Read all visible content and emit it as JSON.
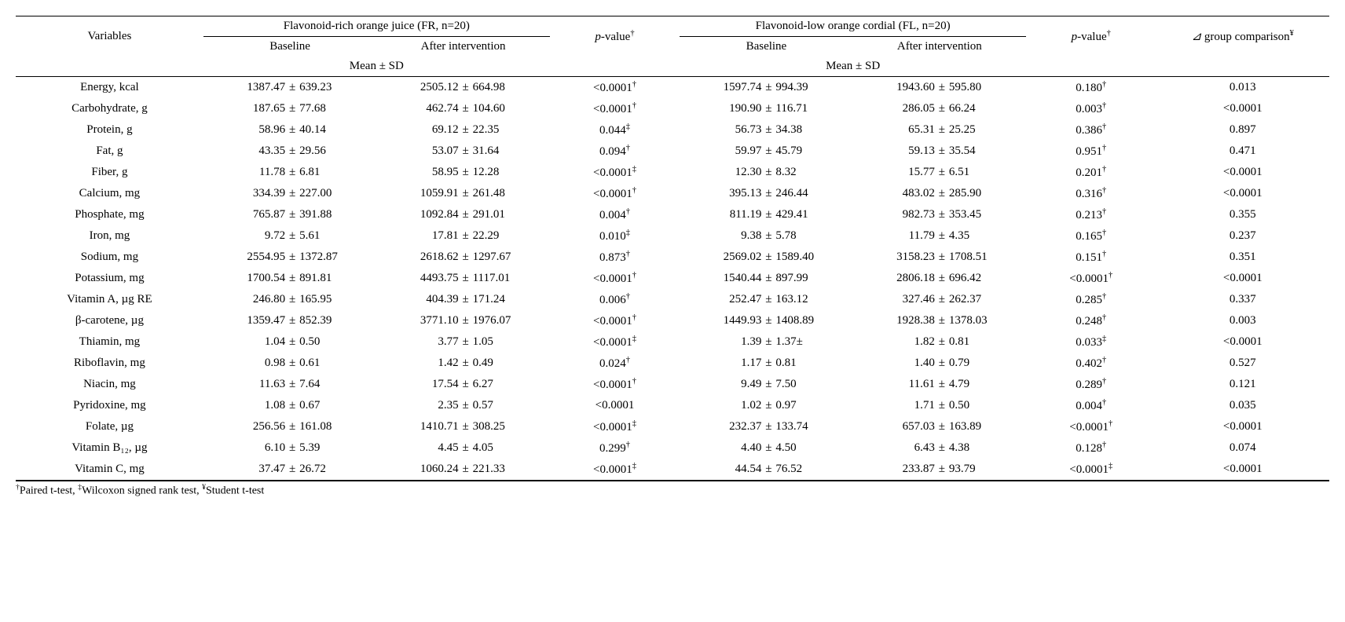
{
  "headers": {
    "variables": "Variables",
    "group_fr": "Flavonoid-rich orange juice (FR, n=20)",
    "group_fl": "Flavonoid-low orange cordial (FL, n=20)",
    "baseline": "Baseline",
    "after": "After intervention",
    "pvalue": "p",
    "pvalue_suffix": "-value",
    "pvalue_dagger": "†",
    "mean_sd": "Mean ± SD",
    "delta_prefix": "⊿",
    "delta_text": " group comparison",
    "delta_yen": "¥"
  },
  "rows": [
    {
      "var": "Energy, kcal",
      "fr_b_m": "1387.47",
      "fr_b_s": "639.23",
      "fr_a_m": "2505.12",
      "fr_a_s": "664.98",
      "fr_p": "<0.0001",
      "fr_p_sym": "†",
      "fl_b_m": "1597.74",
      "fl_b_s": "994.39",
      "fl_a_m": "1943.60",
      "fl_a_s": "595.80",
      "fl_p": "0.180",
      "fl_p_sym": "†",
      "delta": "0.013"
    },
    {
      "var": "Carbohydrate, g",
      "fr_b_m": "187.65",
      "fr_b_s": "77.68",
      "fr_a_m": "462.74",
      "fr_a_s": "104.60",
      "fr_p": "<0.0001",
      "fr_p_sym": "†",
      "fl_b_m": "190.90",
      "fl_b_s": "116.71",
      "fl_a_m": "286.05",
      "fl_a_s": "66.24",
      "fl_p": "0.003",
      "fl_p_sym": "†",
      "delta": "<0.0001"
    },
    {
      "var": "Protein, g",
      "fr_b_m": "58.96",
      "fr_b_s": "40.14",
      "fr_a_m": "69.12",
      "fr_a_s": "22.35",
      "fr_p": "0.044",
      "fr_p_sym": "‡",
      "fl_b_m": "56.73",
      "fl_b_s": "34.38",
      "fl_a_m": "65.31",
      "fl_a_s": "25.25",
      "fl_p": "0.386",
      "fl_p_sym": "†",
      "delta": "0.897"
    },
    {
      "var": "Fat, g",
      "fr_b_m": "43.35",
      "fr_b_s": "29.56",
      "fr_a_m": "53.07",
      "fr_a_s": "31.64",
      "fr_p": "0.094",
      "fr_p_sym": "†",
      "fl_b_m": "59.97",
      "fl_b_s": "45.79",
      "fl_a_m": "59.13",
      "fl_a_s": "35.54",
      "fl_p": "0.951",
      "fl_p_sym": "†",
      "delta": "0.471"
    },
    {
      "var": "Fiber, g",
      "fr_b_m": "11.78",
      "fr_b_s": "6.81",
      "fr_a_m": "58.95",
      "fr_a_s": "12.28",
      "fr_p": "<0.0001",
      "fr_p_sym": "‡",
      "fl_b_m": "12.30",
      "fl_b_s": "8.32",
      "fl_a_m": "15.77",
      "fl_a_s": "6.51",
      "fl_p": "0.201",
      "fl_p_sym": "†",
      "delta": "<0.0001"
    },
    {
      "var": "Calcium, mg",
      "fr_b_m": "334.39",
      "fr_b_s": "227.00",
      "fr_a_m": "1059.91",
      "fr_a_s": "261.48",
      "fr_p": "<0.0001",
      "fr_p_sym": "†",
      "fl_b_m": "395.13",
      "fl_b_s": "246.44",
      "fl_a_m": "483.02",
      "fl_a_s": "285.90",
      "fl_p": "0.316",
      "fl_p_sym": "†",
      "delta": "<0.0001"
    },
    {
      "var": "Phosphate, mg",
      "fr_b_m": "765.87",
      "fr_b_s": "391.88",
      "fr_a_m": "1092.84",
      "fr_a_s": "291.01",
      "fr_p": "0.004",
      "fr_p_sym": "†",
      "fl_b_m": "811.19",
      "fl_b_s": "429.41",
      "fl_a_m": "982.73",
      "fl_a_s": "353.45",
      "fl_p": "0.213",
      "fl_p_sym": "†",
      "delta": "0.355"
    },
    {
      "var": "Iron, mg",
      "fr_b_m": "9.72",
      "fr_b_s": "5.61",
      "fr_a_m": "17.81",
      "fr_a_s": "22.29",
      "fr_p": "0.010",
      "fr_p_sym": "‡",
      "fl_b_m": "9.38",
      "fl_b_s": "5.78",
      "fl_a_m": "11.79",
      "fl_a_s": "4.35",
      "fl_p": "0.165",
      "fl_p_sym": "†",
      "delta": "0.237"
    },
    {
      "var": "Sodium, mg",
      "fr_b_m": "2554.95",
      "fr_b_s": "1372.87",
      "fr_a_m": "2618.62",
      "fr_a_s": "1297.67",
      "fr_p": "0.873",
      "fr_p_sym": "†",
      "fl_b_m": "2569.02",
      "fl_b_s": "1589.40",
      "fl_a_m": "3158.23",
      "fl_a_s": "1708.51",
      "fl_p": "0.151",
      "fl_p_sym": "†",
      "delta": "0.351"
    },
    {
      "var": "Potassium, mg",
      "fr_b_m": "1700.54",
      "fr_b_s": "891.81",
      "fr_a_m": "4493.75",
      "fr_a_s": "1117.01",
      "fr_p": "<0.0001",
      "fr_p_sym": "†",
      "fl_b_m": "1540.44",
      "fl_b_s": "897.99",
      "fl_a_m": "2806.18",
      "fl_a_s": "696.42",
      "fl_p": "<0.0001",
      "fl_p_sym": "†",
      "delta": "<0.0001"
    },
    {
      "var": "Vitamin A, µg RE",
      "fr_b_m": "246.80",
      "fr_b_s": "165.95",
      "fr_a_m": "404.39",
      "fr_a_s": "171.24",
      "fr_p": "0.006",
      "fr_p_sym": "†",
      "fl_b_m": "252.47",
      "fl_b_s": "163.12",
      "fl_a_m": "327.46",
      "fl_a_s": "262.37",
      "fl_p": "0.285",
      "fl_p_sym": "†",
      "delta": "0.337"
    },
    {
      "var": "β-carotene, µg",
      "fr_b_m": "1359.47",
      "fr_b_s": "852.39",
      "fr_a_m": "3771.10",
      "fr_a_s": "1976.07",
      "fr_p": "<0.0001",
      "fr_p_sym": "†",
      "fl_b_m": "1449.93",
      "fl_b_s": "1408.89",
      "fl_a_m": "1928.38",
      "fl_a_s": "1378.03",
      "fl_p": "0.248",
      "fl_p_sym": "†",
      "delta": "0.003"
    },
    {
      "var": "Thiamin, mg",
      "fr_b_m": "1.04",
      "fr_b_s": "0.50",
      "fr_a_m": "3.77",
      "fr_a_s": "1.05",
      "fr_p": "<0.0001",
      "fr_p_sym": "‡",
      "fl_b_m": "1.39",
      "fl_b_s": "1.37±",
      "fl_a_m": "1.82",
      "fl_a_s": "0.81",
      "fl_p": "0.033",
      "fl_p_sym": "‡",
      "delta": "<0.0001"
    },
    {
      "var": "Riboflavin, mg",
      "fr_b_m": "0.98",
      "fr_b_s": "0.61",
      "fr_a_m": "1.42",
      "fr_a_s": "0.49",
      "fr_p": "0.024",
      "fr_p_sym": "†",
      "fl_b_m": "1.17",
      "fl_b_s": "0.81",
      "fl_a_m": "1.40",
      "fl_a_s": "0.79",
      "fl_p": "0.402",
      "fl_p_sym": "†",
      "delta": "0.527"
    },
    {
      "var": "Niacin, mg",
      "fr_b_m": "11.63",
      "fr_b_s": "7.64",
      "fr_a_m": "17.54",
      "fr_a_s": "6.27",
      "fr_p": "<0.0001",
      "fr_p_sym": "†",
      "fl_b_m": "9.49",
      "fl_b_s": "7.50",
      "fl_a_m": "11.61",
      "fl_a_s": "4.79",
      "fl_p": "0.289",
      "fl_p_sym": "†",
      "delta": "0.121"
    },
    {
      "var": "Pyridoxine, mg",
      "fr_b_m": "1.08",
      "fr_b_s": "0.67",
      "fr_a_m": "2.35",
      "fr_a_s": "0.57",
      "fr_p": "<0.0001",
      "fr_p_sym": "",
      "fl_b_m": "1.02",
      "fl_b_s": "0.97",
      "fl_a_m": "1.71",
      "fl_a_s": "0.50",
      "fl_p": "0.004",
      "fl_p_sym": "†",
      "delta": "0.035"
    },
    {
      "var": "Folate, µg",
      "fr_b_m": "256.56",
      "fr_b_s": "161.08",
      "fr_a_m": "1410.71",
      "fr_a_s": "308.25",
      "fr_p": "<0.0001",
      "fr_p_sym": "‡",
      "fl_b_m": "232.37",
      "fl_b_s": "133.74",
      "fl_a_m": "657.03",
      "fl_a_s": "163.89",
      "fl_p": "<0.0001",
      "fl_p_sym": "†",
      "delta": "<0.0001"
    },
    {
      "var": "Vitamin B₁₂, µg",
      "fr_b_m": "6.10",
      "fr_b_s": "5.39",
      "fr_a_m": "4.45",
      "fr_a_s": "4.05",
      "fr_p": "0.299",
      "fr_p_sym": "†",
      "fl_b_m": "4.40",
      "fl_b_s": "4.50",
      "fl_a_m": "6.43",
      "fl_a_s": "4.38",
      "fl_p": "0.128",
      "fl_p_sym": "†",
      "delta": "0.074"
    },
    {
      "var": "Vitamin C, mg",
      "fr_b_m": "37.47",
      "fr_b_s": "26.72",
      "fr_a_m": "1060.24",
      "fr_a_s": "221.33",
      "fr_p": "<0.0001",
      "fr_p_sym": "‡",
      "fl_b_m": "44.54",
      "fl_b_s": "76.52",
      "fl_a_m": "233.87",
      "fl_a_s": "93.79",
      "fl_p": "<0.0001",
      "fl_p_sym": "‡",
      "delta": "<0.0001"
    }
  ],
  "footnote": {
    "dagger": "†",
    "text1": "Paired t-test, ",
    "ddagger": "‡",
    "text2": "Wilcoxon signed rank test, ",
    "yen": "¥",
    "text3": "Student t-test"
  },
  "style": {
    "plus_minus": "±"
  }
}
